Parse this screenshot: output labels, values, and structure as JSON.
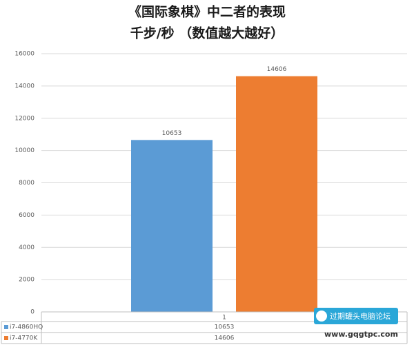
{
  "chart_data": {
    "type": "bar",
    "title": "《国际象棋》中二者的表现",
    "subtitle": "千步/秒 （数值越大越好）",
    "categories": [
      "1"
    ],
    "series": [
      {
        "name": "i7-4860HQ",
        "color": "#5b9bd5",
        "values": [
          10653
        ]
      },
      {
        "name": "i7-4770K",
        "color": "#ed7d31",
        "values": [
          14606
        ]
      }
    ],
    "ylim": [
      0,
      16000
    ],
    "yticks": [
      0,
      2000,
      4000,
      6000,
      8000,
      10000,
      12000,
      14000,
      16000
    ],
    "grid": true,
    "data_table": true
  },
  "watermark": {
    "name": "过期罐头电脑论坛",
    "url": "www.gqgtpc.com"
  }
}
